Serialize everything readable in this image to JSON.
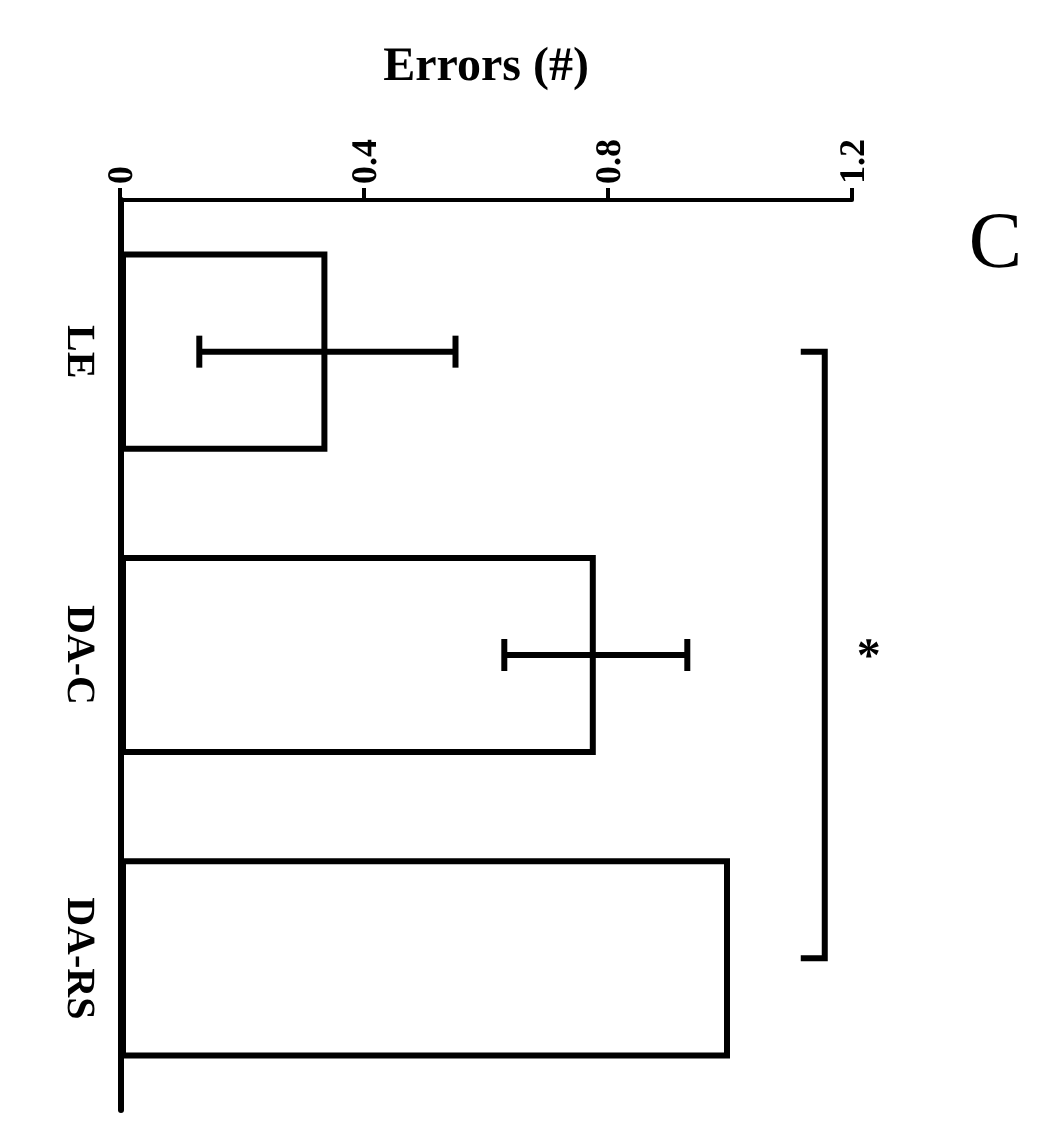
{
  "chart_data": {
    "type": "bar",
    "orientation": "horizontal",
    "title": "C",
    "xlabel": "Errors (#)",
    "categories": [
      "LE",
      "DA-C",
      "DA-RS"
    ],
    "values": [
      0.34,
      0.78,
      1.0
    ],
    "errors": [
      0.21,
      0.15,
      null
    ],
    "color": "#ffffff",
    "xlim": [
      0,
      1.2
    ],
    "xticks": [
      0,
      0.4,
      0.8,
      1.2
    ],
    "annotations": [
      "*"
    ],
    "data_labels": false
  }
}
